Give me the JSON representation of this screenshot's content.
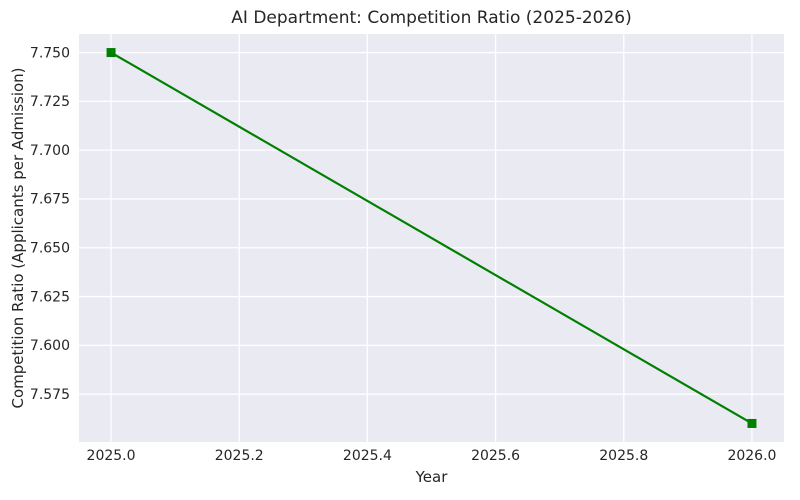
{
  "figure": {
    "background": "#ffffff"
  },
  "chart_data": {
    "type": "line",
    "title": "AI Department: Competition Ratio (2025-2026)",
    "xlabel": "Year",
    "ylabel": "Competition Ratio (Applicants per Admission)",
    "x": [
      2025,
      2026
    ],
    "series": [
      {
        "name": "Competition Ratio",
        "values": [
          7.75,
          7.56
        ],
        "color": "#008000",
        "marker": "square",
        "line_width": 2.2,
        "marker_size": 9
      }
    ],
    "xlim": [
      2024.95,
      2026.05
    ],
    "ylim": [
      7.5505,
      7.7595
    ],
    "xticks": {
      "values": [
        2025.0,
        2025.2,
        2025.4,
        2025.6,
        2025.8,
        2026.0
      ],
      "labels": [
        "2025.0",
        "2025.2",
        "2025.4",
        "2025.6",
        "2025.8",
        "2026.0"
      ]
    },
    "yticks": {
      "values": [
        7.575,
        7.6,
        7.625,
        7.65,
        7.675,
        7.7,
        7.725,
        7.75
      ],
      "labels": [
        "7.575",
        "7.600",
        "7.625",
        "7.650",
        "7.675",
        "7.700",
        "7.725",
        "7.750"
      ]
    },
    "grid": true,
    "legend": false,
    "plot_background": "#eaeaf2",
    "grid_color": "#ffffff",
    "text_color": "#262626",
    "tick_font_size": 14
  }
}
